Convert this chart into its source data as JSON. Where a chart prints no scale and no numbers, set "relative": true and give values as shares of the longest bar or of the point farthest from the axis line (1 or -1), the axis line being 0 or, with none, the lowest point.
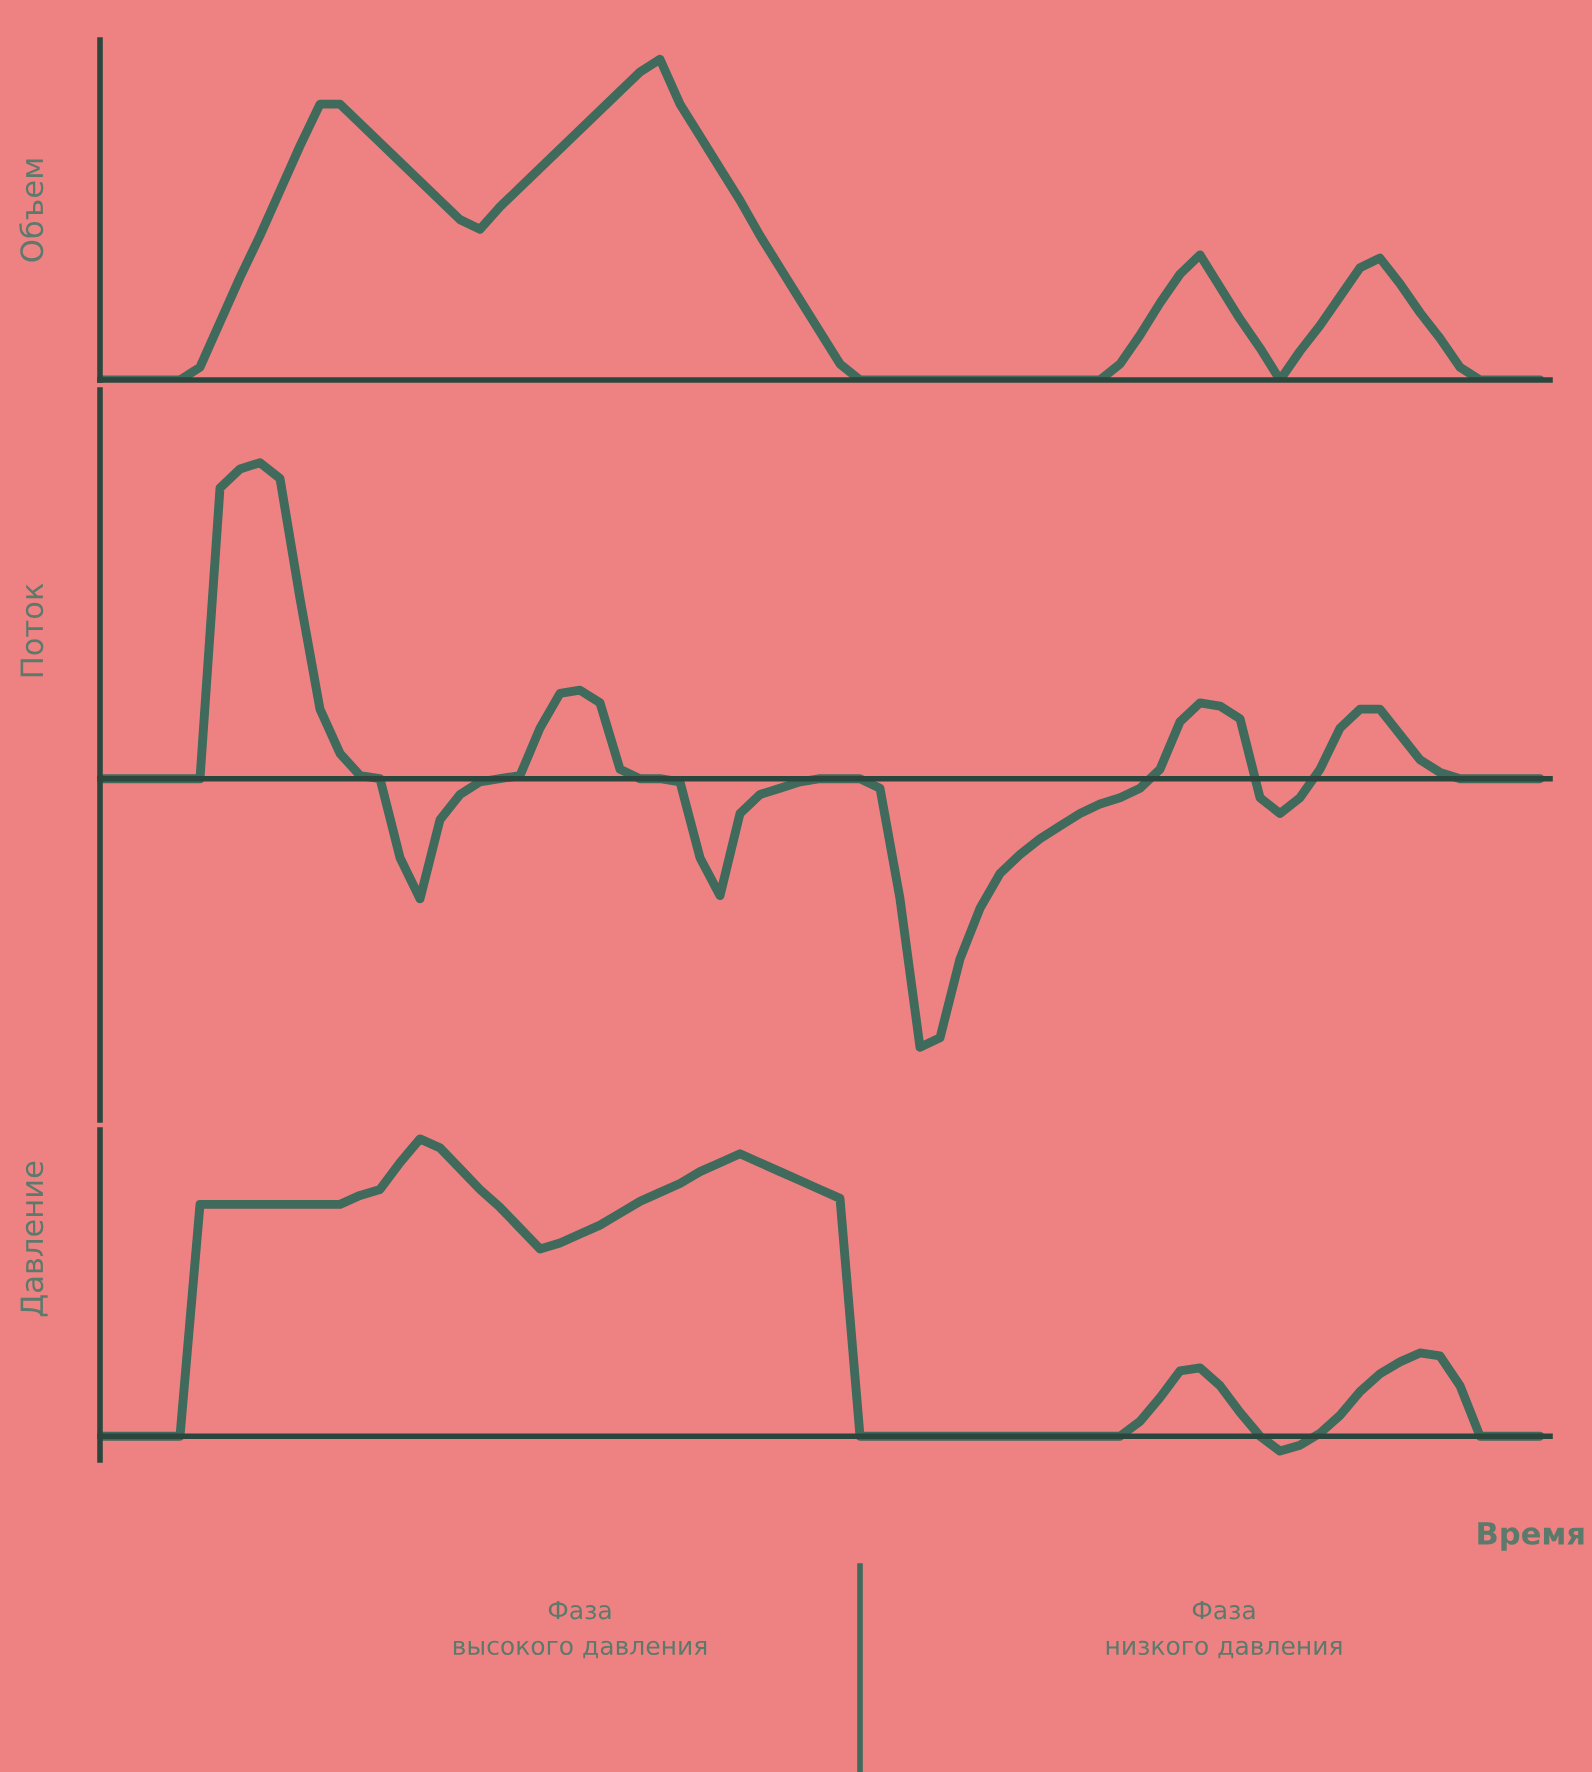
{
  "chart_data": [
    {
      "type": "line",
      "ylabel": "Объем",
      "relative": true,
      "grid": false,
      "categories": [
        null,
        null,
        null,
        null,
        null,
        null,
        null,
        null,
        null,
        null,
        null,
        null,
        null,
        null,
        null,
        null,
        null,
        null,
        null,
        null,
        null,
        null,
        null,
        null,
        null,
        null,
        null,
        null,
        null,
        null,
        null,
        null,
        null,
        null,
        null,
        null,
        null,
        null,
        null,
        null,
        null,
        null,
        null,
        null,
        null,
        null,
        null,
        null,
        null,
        null,
        null,
        null,
        null,
        null,
        null,
        null,
        null,
        null,
        null,
        null,
        null,
        null,
        null,
        null,
        null,
        null,
        null,
        null,
        null,
        null,
        null,
        null,
        null
      ],
      "series": [
        {
          "color": "#3f6a5c",
          "values": [
            0,
            0,
            0,
            0,
            0,
            0.04,
            0.18,
            0.32,
            0.45,
            0.59,
            0.73,
            0.86,
            0.86,
            0.8,
            0.74,
            0.68,
            0.62,
            0.56,
            0.5,
            0.47,
            0.54,
            0.6,
            0.66,
            0.72,
            0.78,
            0.84,
            0.9,
            0.96,
            1.0,
            0.86,
            0.76,
            0.66,
            0.56,
            0.45,
            0.35,
            0.25,
            0.15,
            0.05,
            0,
            0,
            0,
            0,
            0,
            0,
            0,
            0,
            0,
            0,
            0,
            0,
            0,
            0.05,
            0.14,
            0.24,
            0.33,
            0.39,
            0.29,
            0.19,
            0.1,
            0,
            0.09,
            0.17,
            0.26,
            0.35,
            0.38,
            0.3,
            0.21,
            0.13,
            0.04,
            0,
            0,
            0,
            0
          ]
        }
      ]
    },
    {
      "type": "line",
      "ylabel": "Поток",
      "relative": true,
      "grid": false,
      "categories": [
        null,
        null,
        null,
        null,
        null,
        null,
        null,
        null,
        null,
        null,
        null,
        null,
        null,
        null,
        null,
        null,
        null,
        null,
        null,
        null,
        null,
        null,
        null,
        null,
        null,
        null,
        null,
        null,
        null,
        null,
        null,
        null,
        null,
        null,
        null,
        null,
        null,
        null,
        null,
        null,
        null,
        null,
        null,
        null,
        null,
        null,
        null,
        null,
        null,
        null,
        null,
        null,
        null,
        null,
        null,
        null,
        null,
        null,
        null,
        null,
        null,
        null,
        null,
        null,
        null,
        null,
        null,
        null,
        null,
        null,
        null,
        null,
        null
      ],
      "series": [
        {
          "color": "#3f6a5c",
          "values": [
            0,
            0,
            0,
            0,
            0,
            0,
            0.92,
            0.98,
            1,
            0.95,
            0.57,
            0.22,
            0.08,
            0.01,
            0,
            -0.25,
            -0.38,
            -0.13,
            -0.05,
            -0.01,
            0,
            0.01,
            0.16,
            0.27,
            0.28,
            0.24,
            0.03,
            0,
            0,
            -0.01,
            -0.25,
            -0.37,
            -0.11,
            -0.05,
            -0.03,
            -0.01,
            0,
            0,
            0,
            -0.03,
            -0.38,
            -0.85,
            -0.82,
            -0.57,
            -0.41,
            -0.3,
            -0.24,
            -0.19,
            -0.15,
            -0.11,
            -0.08,
            -0.06,
            -0.03,
            0.03,
            0.18,
            0.24,
            0.23,
            0.19,
            -0.06,
            -0.11,
            -0.06,
            0.03,
            0.16,
            0.22,
            0.22,
            0.14,
            0.06,
            0.02,
            0,
            0,
            0,
            0,
            0
          ]
        }
      ]
    },
    {
      "type": "line",
      "ylabel": "Давление",
      "xlabel": "Время",
      "relative": true,
      "grid": false,
      "annotations": [
        "Фаза\nвысокого давления",
        "Фаза\nнизкого давления"
      ],
      "categories": [
        null,
        null,
        null,
        null,
        null,
        null,
        null,
        null,
        null,
        null,
        null,
        null,
        null,
        null,
        null,
        null,
        null,
        null,
        null,
        null,
        null,
        null,
        null,
        null,
        null,
        null,
        null,
        null,
        null,
        null,
        null,
        null,
        null,
        null,
        null,
        null,
        null,
        null,
        null,
        null,
        null,
        null,
        null,
        null,
        null,
        null,
        null,
        null,
        null,
        null,
        null,
        null,
        null,
        null,
        null,
        null,
        null,
        null,
        null,
        null,
        null,
        null,
        null,
        null,
        null,
        null,
        null,
        null,
        null,
        null,
        null,
        null,
        null
      ],
      "series": [
        {
          "color": "#3f6a5c",
          "values": [
            0,
            0,
            0,
            0,
            0,
            0.78,
            0.78,
            0.78,
            0.78,
            0.78,
            0.78,
            0.78,
            0.78,
            0.81,
            0.83,
            0.92,
            1.0,
            0.97,
            0.9,
            0.83,
            0.77,
            0.7,
            0.63,
            0.65,
            0.68,
            0.71,
            0.75,
            0.79,
            0.82,
            0.85,
            0.89,
            0.92,
            0.95,
            0.92,
            0.89,
            0.86,
            0.83,
            0.8,
            0,
            0,
            0,
            0,
            0,
            0,
            0,
            0,
            0,
            0,
            0,
            0,
            0,
            0,
            0.05,
            0.13,
            0.22,
            0.23,
            0.17,
            0.08,
            0,
            -0.05,
            -0.03,
            0.01,
            0.07,
            0.15,
            0.21,
            0.25,
            0.28,
            0.27,
            0.17,
            0,
            0,
            0,
            0
          ]
        }
      ]
    }
  ]
}
